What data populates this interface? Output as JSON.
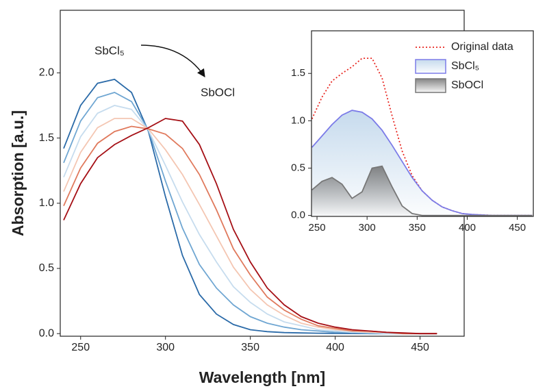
{
  "chart_data": [
    {
      "type": "line",
      "xlabel": "Wavelength [nm]",
      "ylabel": "Absorption [a.u.]",
      "annotations": [
        "SbCl₅",
        "SbOCl"
      ],
      "x": [
        240,
        250,
        260,
        270,
        280,
        290,
        300,
        310,
        320,
        330,
        340,
        350,
        360,
        370,
        380,
        390,
        400,
        410,
        420,
        430,
        440,
        450,
        460
      ],
      "series": [
        {
          "color": "#2a6aa8",
          "values": [
            1.42,
            1.75,
            1.92,
            1.95,
            1.85,
            1.55,
            1.05,
            0.6,
            0.3,
            0.15,
            0.07,
            0.03,
            0.015,
            0.008,
            0.005,
            0.003,
            0.002,
            0.001,
            0,
            0,
            0,
            0,
            0
          ]
        },
        {
          "color": "#6fa6d2",
          "values": [
            1.31,
            1.63,
            1.81,
            1.85,
            1.78,
            1.56,
            1.17,
            0.81,
            0.53,
            0.35,
            0.22,
            0.13,
            0.08,
            0.05,
            0.03,
            0.02,
            0.01,
            0.01,
            0,
            0,
            0,
            0,
            0
          ]
        },
        {
          "color": "#c6dcee",
          "values": [
            1.2,
            1.51,
            1.69,
            1.75,
            1.72,
            1.56,
            1.29,
            1.01,
            0.76,
            0.55,
            0.36,
            0.24,
            0.15,
            0.09,
            0.06,
            0.03,
            0.02,
            0.01,
            0.01,
            0,
            0,
            0,
            0
          ]
        },
        {
          "color": "#f4c6b2",
          "values": [
            1.09,
            1.39,
            1.58,
            1.65,
            1.65,
            1.57,
            1.41,
            1.22,
            0.99,
            0.75,
            0.51,
            0.34,
            0.22,
            0.14,
            0.08,
            0.05,
            0.03,
            0.02,
            0.01,
            0.01,
            0,
            0,
            0
          ]
        },
        {
          "color": "#e0795c",
          "values": [
            0.98,
            1.27,
            1.46,
            1.55,
            1.59,
            1.57,
            1.53,
            1.42,
            1.22,
            0.95,
            0.65,
            0.45,
            0.28,
            0.18,
            0.11,
            0.06,
            0.04,
            0.02,
            0.02,
            0.01,
            0,
            0,
            0
          ]
        },
        {
          "color": "#a50f15",
          "values": [
            0.87,
            1.15,
            1.35,
            1.45,
            1.52,
            1.58,
            1.65,
            1.63,
            1.45,
            1.15,
            0.8,
            0.55,
            0.35,
            0.22,
            0.13,
            0.08,
            0.05,
            0.03,
            0.02,
            0.01,
            0.005,
            0,
            0
          ]
        }
      ],
      "xlim": [
        238,
        476
      ],
      "ylim": [
        -0.02,
        2.48
      ],
      "xticks": [
        250,
        300,
        350,
        400,
        450
      ],
      "yticks": [
        {
          "value": 0,
          "label": "0.0"
        },
        {
          "value": 0.5,
          "label": "0.5"
        },
        {
          "value": 1,
          "label": "1.0"
        },
        {
          "value": 1.5,
          "label": "1.5"
        },
        {
          "value": 2,
          "label": "2.0"
        }
      ]
    },
    {
      "type": "line",
      "x": [
        245,
        255,
        265,
        275,
        285,
        295,
        305,
        315,
        325,
        335,
        345,
        355,
        365,
        375,
        385,
        395,
        405,
        415,
        425,
        435,
        445,
        455,
        465
      ],
      "series": [
        {
          "name": "Original data",
          "color": "#e8251f",
          "style": "dotted",
          "values": [
            1.02,
            1.25,
            1.42,
            1.5,
            1.57,
            1.66,
            1.66,
            1.45,
            1.05,
            0.68,
            0.42,
            0.26,
            0.16,
            0.09,
            0.05,
            0.02,
            0.01,
            0.005,
            0,
            0,
            0,
            0,
            0
          ]
        },
        {
          "name": "SbCl₅",
          "color": "#7b7be8",
          "fill": "#bcd4ea",
          "values": [
            0.72,
            0.84,
            0.96,
            1.06,
            1.11,
            1.09,
            1.02,
            0.9,
            0.74,
            0.57,
            0.4,
            0.26,
            0.16,
            0.09,
            0.05,
            0.02,
            0.01,
            0.005,
            0,
            0,
            0,
            0,
            0
          ]
        },
        {
          "name": "SbOCl",
          "color": "#777777",
          "fill": "#6f6f6f",
          "values": [
            0.27,
            0.36,
            0.4,
            0.33,
            0.18,
            0.25,
            0.5,
            0.52,
            0.3,
            0.1,
            0.02,
            0,
            0,
            0,
            0,
            0,
            0,
            0,
            0,
            0,
            0,
            0,
            0
          ]
        }
      ],
      "xlim": [
        244.5,
        466
      ],
      "ylim": [
        -0.01,
        1.95
      ],
      "xticks": [
        250,
        300,
        350,
        400,
        450
      ],
      "yticks": [
        {
          "value": 0,
          "label": "0.0"
        },
        {
          "value": 0.5,
          "label": "0.5"
        },
        {
          "value": 1,
          "label": "1.0"
        },
        {
          "value": 1.5,
          "label": "1.5"
        }
      ],
      "legend": "top-right"
    }
  ]
}
